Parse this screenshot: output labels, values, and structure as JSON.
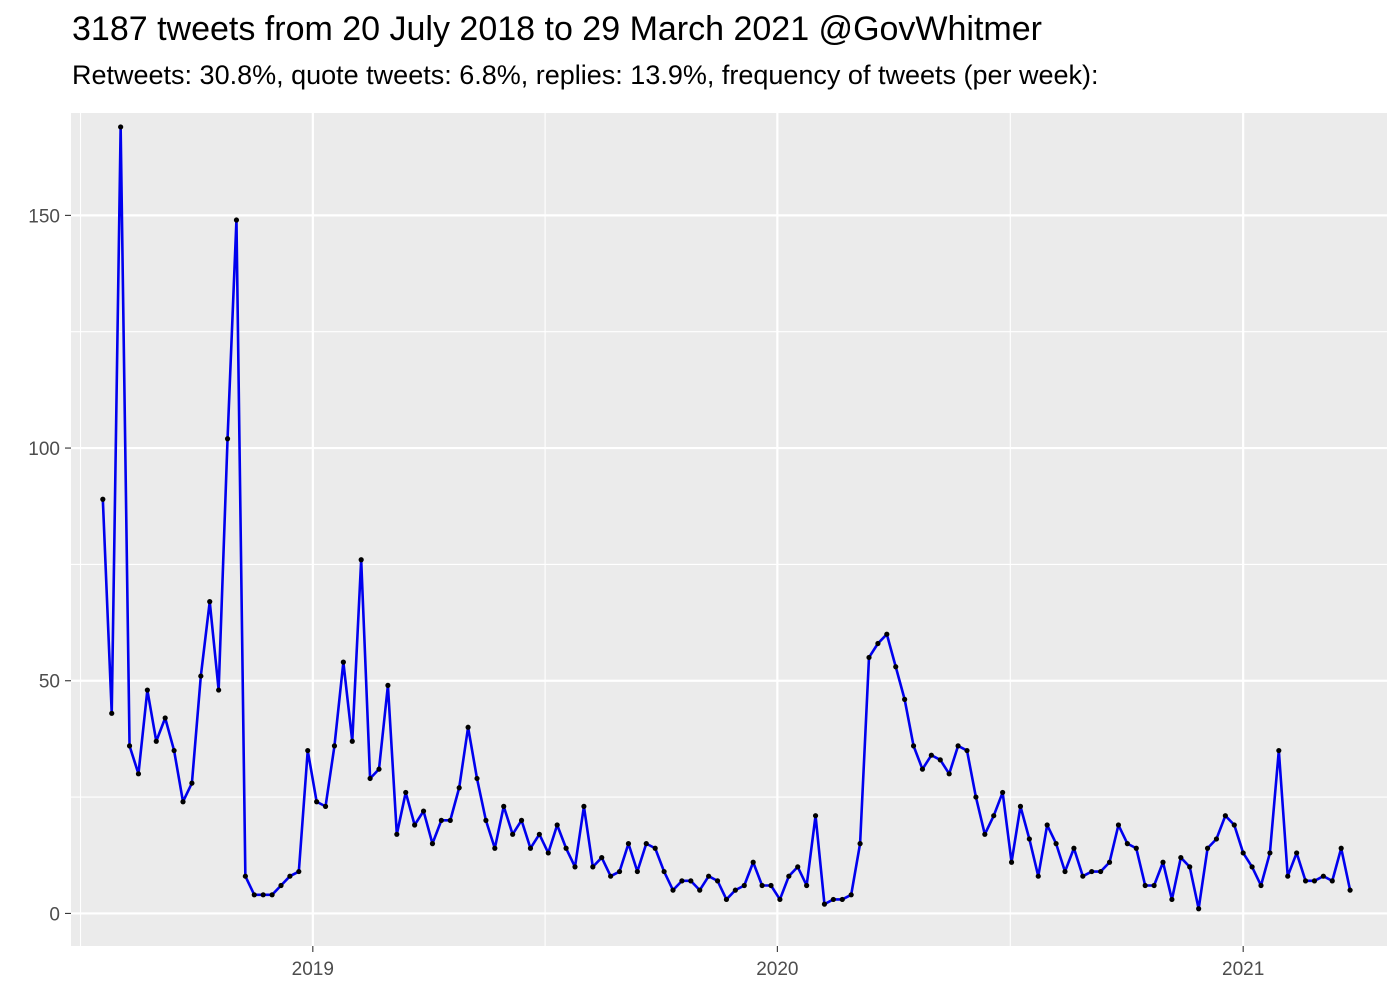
{
  "chart_data": {
    "type": "line",
    "title": "3187 tweets from 20 July 2018 to 29 March 2021 @GovWhitmer",
    "subtitle": "Retweets: 30.8%, quote tweets: 6.8%, replies: 13.9%, frequency of tweets (per week):",
    "xlabel": "",
    "ylabel": "",
    "x_start": "2018-07-20",
    "x_step_days": 7,
    "x_ticks": [
      {
        "label": "2019",
        "date": "2019-01-01"
      },
      {
        "label": "2020",
        "date": "2020-01-01"
      },
      {
        "label": "2021",
        "date": "2021-01-01"
      }
    ],
    "x_range": [
      "2018-06-25",
      "2021-04-24"
    ],
    "y_ticks": [
      0,
      50,
      100,
      150
    ],
    "ylim": [
      -7,
      172
    ],
    "grid": true,
    "line_color": "#0000ee",
    "point_color": "#000000",
    "values": [
      89,
      43,
      169,
      36,
      30,
      48,
      37,
      42,
      35,
      24,
      28,
      51,
      67,
      48,
      102,
      149,
      8,
      4,
      4,
      4,
      6,
      8,
      9,
      35,
      24,
      23,
      36,
      54,
      37,
      76,
      29,
      31,
      49,
      17,
      26,
      19,
      22,
      15,
      20,
      20,
      27,
      40,
      29,
      20,
      14,
      23,
      17,
      20,
      14,
      17,
      13,
      19,
      14,
      10,
      23,
      10,
      12,
      8,
      9,
      15,
      9,
      15,
      14,
      9,
      5,
      7,
      7,
      5,
      8,
      7,
      3,
      5,
      6,
      11,
      6,
      6,
      3,
      8,
      10,
      6,
      21,
      2,
      3,
      3,
      4,
      15,
      55,
      58,
      60,
      53,
      46,
      36,
      31,
      34,
      33,
      30,
      36,
      35,
      25,
      17,
      21,
      26,
      11,
      23,
      16,
      8,
      19,
      15,
      9,
      14,
      8,
      9,
      9,
      11,
      19,
      15,
      14,
      6,
      6,
      11,
      3,
      12,
      10,
      1,
      14,
      16,
      21,
      19,
      13,
      10,
      6,
      13,
      35,
      8,
      13,
      7,
      7,
      8,
      7,
      14,
      5
    ]
  }
}
